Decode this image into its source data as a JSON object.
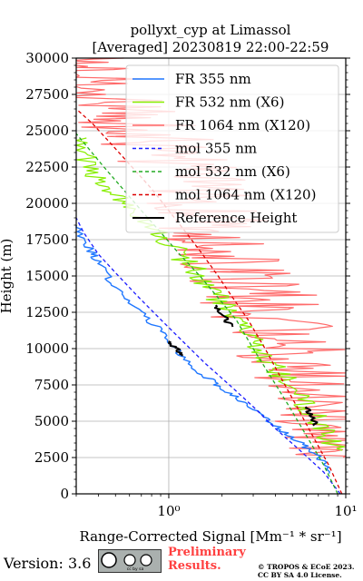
{
  "title_line1": "pollyxt_cyp at Limassol",
  "title_line2": "[Averaged] 20230819 22:00-22:59",
  "chart_data": {
    "type": "line",
    "title": "pollyxt_cyp at Limassol\n[Averaged] 20230819 22:00-22:59",
    "xlabel": "Range-Corrected Signal [Mm⁻¹ * sr⁻¹]",
    "ylabel": "Height (m)",
    "xscale": "log",
    "xlim": [
      0.3,
      10
    ],
    "ylim": [
      0,
      30000
    ],
    "grid": true,
    "legend_position": "top-right",
    "yticks": [
      0,
      2500,
      5000,
      7500,
      10000,
      12500,
      15000,
      17500,
      20000,
      22500,
      25000,
      27500,
      30000
    ],
    "xtick_labels": [
      {
        "value": 1,
        "label": "10⁰"
      },
      {
        "value": 10,
        "label": "10¹"
      }
    ],
    "series": [
      {
        "name": "FR 355 nm",
        "color": "#1f77ff",
        "style": "solid",
        "x": [
          8.5,
          7.0,
          5.5,
          4.2,
          3.2,
          2.5,
          1.9,
          1.45,
          1.1,
          0.85,
          0.62,
          0.48,
          0.4,
          0.35,
          0.3
        ],
        "y": [
          1400,
          2500,
          3500,
          4500,
          5500,
          6500,
          7500,
          8500,
          10000,
          11500,
          13000,
          14500,
          16000,
          17000,
          18500
        ]
      },
      {
        "name": "FR 532 nm (X6)",
        "color": "#88ee00",
        "style": "solid",
        "x": [
          8.8,
          7.5,
          6.0,
          4.8,
          3.8,
          3.0,
          2.4,
          1.9,
          1.5,
          1.15,
          0.9,
          0.65,
          0.48,
          0.35,
          0.3
        ],
        "y": [
          3000,
          4500,
          6000,
          7500,
          9000,
          10500,
          12000,
          13500,
          15000,
          16500,
          18000,
          19500,
          21000,
          22500,
          24500
        ]
      },
      {
        "name": "FR 1064 nm (X120)",
        "color": "#ff6b6b",
        "style": "solid",
        "x": [
          9.8,
          9.0,
          7.5,
          6.0,
          5.0,
          4.2,
          3.6,
          3.0,
          2.6,
          2.2,
          1.9,
          1.6,
          1.3,
          1.0,
          0.8,
          0.6,
          0.45,
          0.35,
          0.3
        ],
        "y": [
          2500,
          4000,
          6000,
          8000,
          9500,
          11000,
          12500,
          14000,
          15500,
          17000,
          18500,
          20000,
          21500,
          23000,
          24500,
          26000,
          27500,
          29000,
          30000
        ]
      },
      {
        "name": "mol 355 nm",
        "color": "#1c1cff",
        "style": "dashed",
        "x": [
          9.3,
          7.5,
          5.5,
          4.0,
          3.0,
          2.2,
          1.6,
          1.2,
          0.9,
          0.68,
          0.52,
          0.4,
          0.33,
          0.3
        ],
        "y": [
          0,
          1500,
          3000,
          4500,
          6000,
          7500,
          9000,
          10500,
          12000,
          13500,
          15000,
          16500,
          18000,
          19000
        ]
      },
      {
        "name": "mol 532 nm (X6)",
        "color": "#22aa22",
        "style": "dashed",
        "x": [
          9.0,
          7.5,
          6.0,
          4.8,
          3.8,
          3.0,
          2.4,
          1.9,
          1.5,
          1.15,
          0.9,
          0.7,
          0.55,
          0.43,
          0.34,
          0.3
        ],
        "y": [
          0,
          2000,
          4000,
          6000,
          8000,
          10000,
          12000,
          13500,
          15000,
          16500,
          18000,
          19500,
          21000,
          22500,
          24000,
          24800
        ]
      },
      {
        "name": "mol 1064 nm (X120)",
        "color": "#dd0000",
        "style": "dashed",
        "x": [
          9.5,
          8.0,
          6.5,
          5.3,
          4.3,
          3.5,
          2.8,
          2.3,
          1.9,
          1.55,
          1.25,
          1.0,
          0.8,
          0.62,
          0.48,
          0.37,
          0.3
        ],
        "y": [
          0,
          2000,
          4000,
          6000,
          8000,
          10000,
          12000,
          13500,
          15000,
          16500,
          18000,
          19500,
          21000,
          22500,
          24000,
          25500,
          26500
        ]
      },
      {
        "name": "Reference Height",
        "color": "#000000",
        "style": "solid",
        "segments": [
          {
            "x": [
              1.0,
              1.1,
              1.2
            ],
            "y": [
              10500,
              10000,
              9500
            ]
          },
          {
            "x": [
              1.85,
              2.05,
              2.25
            ],
            "y": [
              13000,
              12200,
              11500
            ]
          },
          {
            "x": [
              6.0,
              6.4,
              6.8
            ],
            "y": [
              6000,
              5300,
              4700
            ]
          }
        ]
      }
    ]
  },
  "footer": {
    "version": "Version: 3.6",
    "cc_badge": "cc by sa",
    "preliminary_line1": "Preliminary",
    "preliminary_line2": "Results.",
    "copyright_line1": "© TROPOS & ECoE 2023.",
    "copyright_line2": "CC BY SA 4.0 License."
  }
}
